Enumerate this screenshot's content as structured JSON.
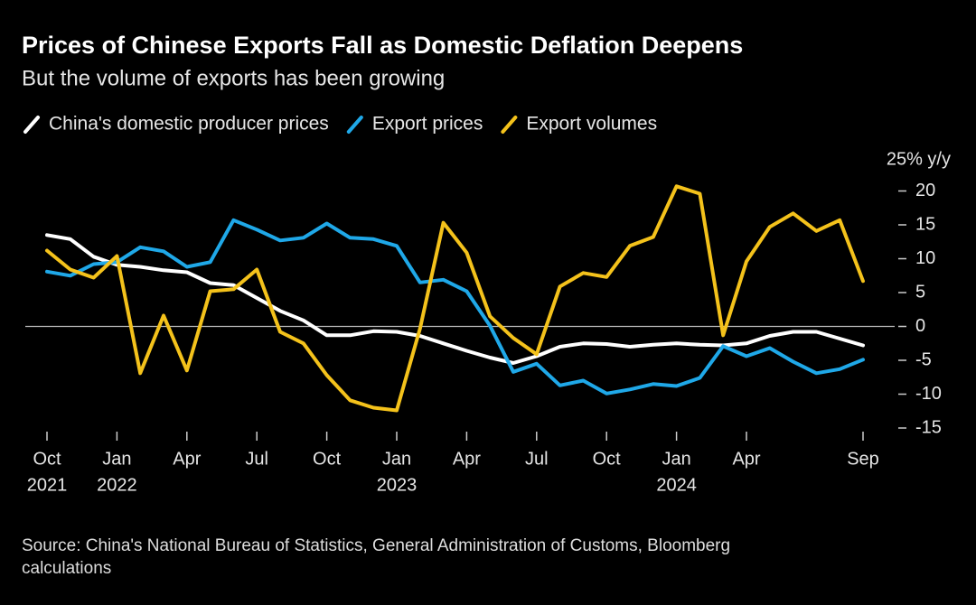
{
  "chart_data": {
    "type": "line",
    "title": "Prices of Chinese Exports Fall as Domestic Deflation Deepens",
    "subtitle": "But the volume of exports has been growing",
    "source": "Source: China's National Bureau of Statistics, General Administration of Customs, Bloomberg calculations",
    "categories": [
      "Oct",
      null,
      null,
      "Jan",
      null,
      null,
      "Apr",
      null,
      null,
      "Jul",
      null,
      null,
      "Oct",
      null,
      null,
      "Jan",
      null,
      null,
      "Apr",
      null,
      null,
      "Jul",
      null,
      null,
      "Oct",
      null,
      null,
      "Jan",
      null,
      null,
      "Apr",
      null,
      null,
      null,
      null,
      "Sep"
    ],
    "category_years": [
      "2021",
      null,
      null,
      "2022",
      null,
      null,
      null,
      null,
      null,
      null,
      null,
      null,
      null,
      null,
      null,
      "2023",
      null,
      null,
      null,
      null,
      null,
      null,
      null,
      null,
      null,
      null,
      null,
      "2024",
      null,
      null,
      null,
      null,
      null,
      null,
      null,
      null
    ],
    "ylim": [
      -15,
      25
    ],
    "yticks": [
      {
        "value": 25,
        "label": "25% y/y"
      },
      20,
      15,
      10,
      5,
      0,
      -5,
      -10,
      -15
    ],
    "series": [
      {
        "name": "China's domestic producer prices",
        "color": "#ffffff",
        "values": [
          13.5,
          12.9,
          10.3,
          9.1,
          8.8,
          8.3,
          8.0,
          6.4,
          6.1,
          4.2,
          2.3,
          0.9,
          -1.3,
          -1.3,
          -0.7,
          -0.8,
          -1.4,
          -2.5,
          -3.6,
          -4.6,
          -5.4,
          -4.4,
          -3.0,
          -2.5,
          -2.6,
          -3.0,
          -2.7,
          -2.5,
          -2.7,
          -2.8,
          -2.5,
          -1.4,
          -0.8,
          -0.8,
          -1.8,
          -2.8
        ]
      },
      {
        "name": "Export prices",
        "color": "#1fa8e8",
        "values": [
          8.1,
          7.5,
          9.2,
          9.5,
          11.7,
          11.1,
          8.8,
          9.5,
          15.7,
          14.3,
          12.7,
          13.1,
          15.2,
          13.1,
          12.9,
          11.9,
          6.5,
          6.9,
          5.2,
          0.1,
          -6.7,
          -5.5,
          -8.7,
          -8.0,
          -9.9,
          -9.3,
          -8.5,
          -8.8,
          -7.6,
          -2.9,
          -4.4,
          -3.2,
          -5.2,
          -6.9,
          -6.3,
          -4.9
        ]
      },
      {
        "name": "Export volumes",
        "color": "#f4c21b",
        "values": [
          11.2,
          8.4,
          7.2,
          10.4,
          -6.9,
          1.6,
          -6.5,
          5.2,
          5.5,
          8.4,
          -0.8,
          -2.5,
          -7.2,
          -10.9,
          -12.0,
          -12.4,
          -0.3,
          15.3,
          10.9,
          1.5,
          -1.7,
          -4.1,
          5.9,
          7.9,
          7.3,
          11.9,
          13.2,
          20.7,
          19.6,
          -1.3,
          9.6,
          14.7,
          16.7,
          14.1,
          15.7,
          6.7
        ]
      }
    ]
  }
}
